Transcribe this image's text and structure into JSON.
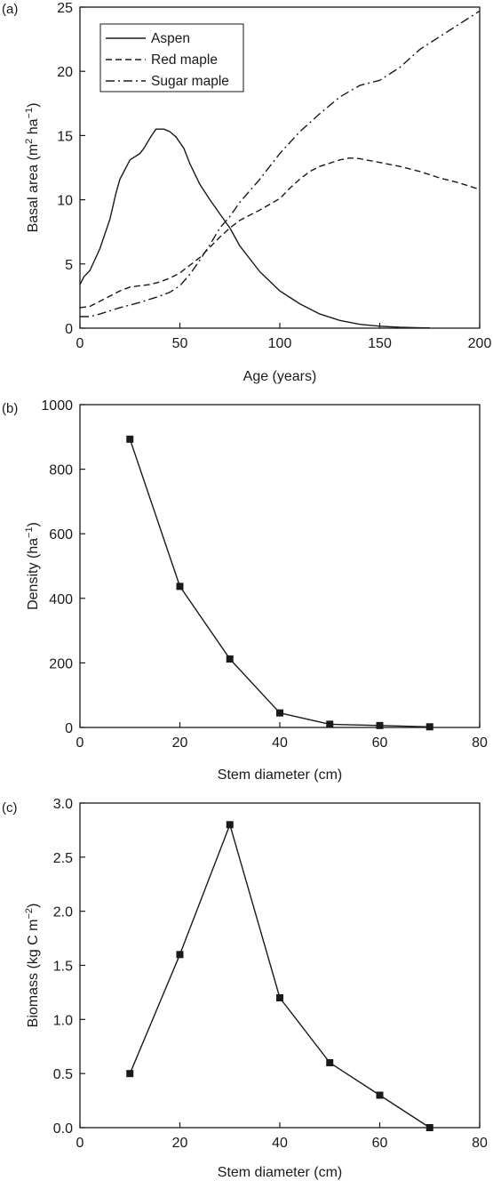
{
  "chart_data": [
    {
      "panel_label": "(a)",
      "type": "line",
      "xlabel": "Age (years)",
      "ylabel_parts": [
        "Basal area (m",
        "2",
        " ha",
        "−1",
        ")"
      ],
      "xlim": [
        0,
        200
      ],
      "ylim": [
        0,
        25
      ],
      "xticks": [
        0,
        50,
        100,
        150,
        200
      ],
      "yticks": [
        0,
        5,
        10,
        15,
        20,
        25
      ],
      "legend_position": "top-left",
      "series": [
        {
          "name": "Aspen",
          "dash": "solid",
          "points": [
            [
              0,
              3.4
            ],
            [
              2,
              4.0
            ],
            [
              5,
              4.5
            ],
            [
              10,
              6.2
            ],
            [
              15,
              8.5
            ],
            [
              18,
              10.5
            ],
            [
              20,
              11.6
            ],
            [
              25,
              13.1
            ],
            [
              30,
              13.6
            ],
            [
              32,
              14.0
            ],
            [
              35,
              14.8
            ],
            [
              38,
              15.5
            ],
            [
              42,
              15.5
            ],
            [
              45,
              15.3
            ],
            [
              48,
              14.9
            ],
            [
              52,
              14.0
            ],
            [
              55,
              12.8
            ],
            [
              60,
              11.2
            ],
            [
              65,
              10.0
            ],
            [
              70,
              8.9
            ],
            [
              75,
              7.8
            ],
            [
              80,
              6.4
            ],
            [
              90,
              4.4
            ],
            [
              100,
              2.9
            ],
            [
              110,
              1.9
            ],
            [
              120,
              1.1
            ],
            [
              130,
              0.6
            ],
            [
              140,
              0.3
            ],
            [
              150,
              0.15
            ],
            [
              160,
              0.07
            ],
            [
              170,
              0.03
            ],
            [
              175,
              0.02
            ]
          ]
        },
        {
          "name": "Red maple",
          "dash": "dashed",
          "points": [
            [
              0,
              1.6
            ],
            [
              5,
              1.7
            ],
            [
              10,
              2.1
            ],
            [
              15,
              2.5
            ],
            [
              20,
              2.9
            ],
            [
              25,
              3.2
            ],
            [
              30,
              3.3
            ],
            [
              35,
              3.4
            ],
            [
              40,
              3.6
            ],
            [
              45,
              3.9
            ],
            [
              50,
              4.3
            ],
            [
              55,
              4.9
            ],
            [
              60,
              5.5
            ],
            [
              65,
              6.3
            ],
            [
              70,
              7.1
            ],
            [
              75,
              7.8
            ],
            [
              80,
              8.4
            ],
            [
              90,
              9.2
            ],
            [
              100,
              10.1
            ],
            [
              105,
              10.9
            ],
            [
              110,
              11.6
            ],
            [
              115,
              12.2
            ],
            [
              120,
              12.6
            ],
            [
              130,
              13.1
            ],
            [
              135,
              13.25
            ],
            [
              140,
              13.2
            ],
            [
              150,
              12.9
            ],
            [
              160,
              12.6
            ],
            [
              170,
              12.2
            ],
            [
              180,
              11.7
            ],
            [
              190,
              11.3
            ],
            [
              200,
              10.8
            ]
          ]
        },
        {
          "name": "Sugar maple",
          "dash": "dashdot",
          "points": [
            [
              0,
              0.9
            ],
            [
              5,
              0.9
            ],
            [
              10,
              1.1
            ],
            [
              20,
              1.6
            ],
            [
              30,
              2.0
            ],
            [
              40,
              2.5
            ],
            [
              45,
              2.8
            ],
            [
              50,
              3.3
            ],
            [
              55,
              4.2
            ],
            [
              60,
              5.3
            ],
            [
              65,
              6.5
            ],
            [
              70,
              7.8
            ],
            [
              75,
              8.7
            ],
            [
              80,
              9.8
            ],
            [
              90,
              11.6
            ],
            [
              100,
              13.6
            ],
            [
              110,
              15.3
            ],
            [
              120,
              16.7
            ],
            [
              130,
              18.0
            ],
            [
              140,
              18.9
            ],
            [
              150,
              19.3
            ],
            [
              160,
              20.3
            ],
            [
              170,
              21.7
            ],
            [
              180,
              22.7
            ],
            [
              190,
              23.7
            ],
            [
              200,
              24.7
            ]
          ]
        }
      ]
    },
    {
      "panel_label": "(b)",
      "type": "line",
      "markers": "square",
      "xlabel": "Stem diameter (cm)",
      "ylabel_parts": [
        "Density (ha",
        "−1",
        ")"
      ],
      "xlim": [
        0,
        80
      ],
      "ylim": [
        0,
        1000
      ],
      "xticks": [
        0,
        20,
        40,
        60,
        80
      ],
      "yticks": [
        0,
        200,
        400,
        600,
        800,
        1000
      ],
      "x": [
        10,
        20,
        30,
        40,
        50,
        60,
        70
      ],
      "y": [
        893,
        437,
        212,
        45,
        10,
        6,
        2
      ]
    },
    {
      "panel_label": "(c)",
      "type": "line",
      "markers": "square",
      "xlabel": "Stem diameter (cm)",
      "ylabel_parts": [
        "Biomass (kg C m",
        "−2",
        ")"
      ],
      "xlim": [
        0,
        80
      ],
      "ylim": [
        0,
        3.0
      ],
      "xticks": [
        0,
        20,
        40,
        60,
        80
      ],
      "yticks": [
        0.0,
        0.5,
        1.0,
        1.5,
        2.0,
        2.5,
        3.0
      ],
      "ytick_decimals": 1,
      "x": [
        10,
        20,
        30,
        40,
        50,
        60,
        70
      ],
      "y": [
        0.5,
        1.6,
        2.8,
        1.2,
        0.6,
        0.3,
        0.0
      ]
    }
  ]
}
